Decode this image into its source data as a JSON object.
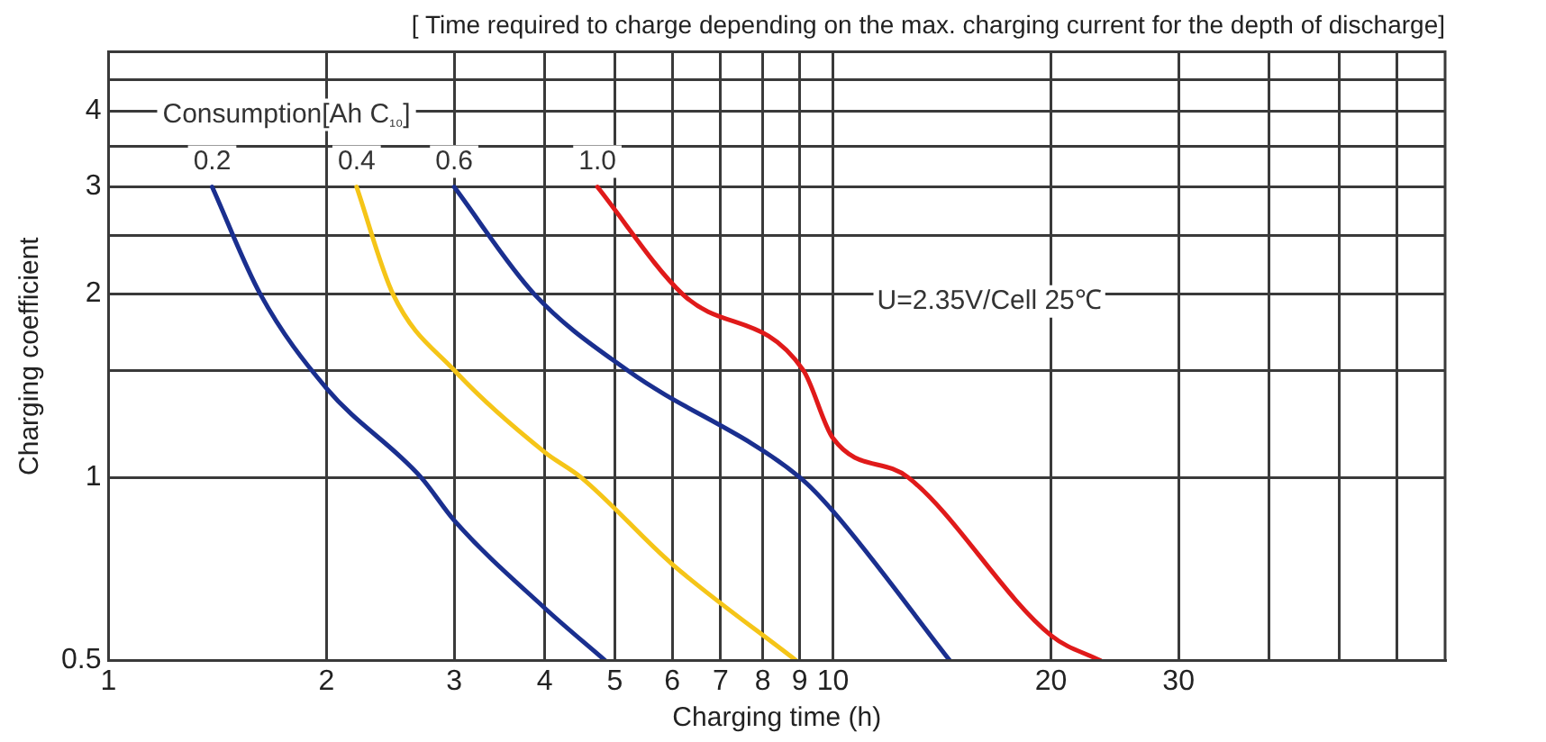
{
  "chart_data": {
    "type": "line",
    "title": "[ Time required to charge depending on the max. charging current for the depth of discharge]",
    "xlabel": "Charging time (h)",
    "ylabel": "Charging coefficient",
    "legend_title": "Consumption[Ah C₁₀]",
    "annotations": [
      "U=2.35V/Cell 25℃"
    ],
    "log": "xy",
    "grid": true,
    "legend": false,
    "marker": "none",
    "line_style": "solid",
    "xlim": [
      1,
      70
    ],
    "xticks": [
      1,
      2,
      3,
      4,
      5,
      6,
      7,
      8,
      9,
      10,
      20,
      30,
      {
        "value": 40,
        "label": null
      },
      {
        "value": 50,
        "label": null
      },
      {
        "value": 60,
        "label": null
      }
    ],
    "ylim": [
      0.5,
      5
    ],
    "yticks": [
      0.5,
      1,
      {
        "value": 1.5,
        "label": null
      },
      2,
      {
        "value": 2.5,
        "label": null
      },
      3,
      {
        "value": 3.5,
        "label": null
      },
      4,
      {
        "value": 4.5,
        "label": null
      }
    ],
    "series": [
      {
        "name": "0.2",
        "color": "#1a2f8f",
        "x": [
          1.39,
          1.62,
          2,
          2.7,
          3,
          4,
          4.85
        ],
        "values": [
          3,
          2,
          1.4,
          1,
          0.85,
          0.61,
          0.5
        ]
      },
      {
        "name": "0.4",
        "color": "#f5c518",
        "x": [
          2.2,
          2.47,
          3,
          4,
          4.49,
          6,
          8.9
        ],
        "values": [
          3,
          2,
          1.5,
          1.1,
          1,
          0.72,
          0.5
        ]
      },
      {
        "name": "0.6",
        "color": "#1a2f8f",
        "x": [
          3,
          3.87,
          5.2,
          9,
          10,
          14.5
        ],
        "values": [
          3,
          2,
          1.5,
          1,
          0.88,
          0.5
        ]
      },
      {
        "name": "1.0",
        "color": "#e01a1a",
        "x": [
          4.73,
          6.2,
          9.1,
          10,
          12.7,
          20,
          23.4
        ],
        "values": [
          3,
          2,
          1.5,
          1.16,
          1,
          0.55,
          0.5
        ]
      }
    ]
  }
}
